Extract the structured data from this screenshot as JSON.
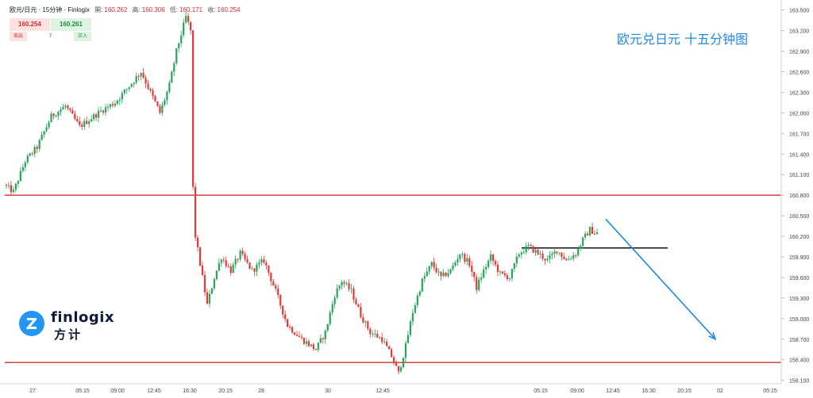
{
  "header": {
    "symbol": "欧元/日元 · 15分钟 · Finlogix",
    "open_label": "開:",
    "open": "160.262",
    "high_label": "高:",
    "high": "160.306",
    "low_label": "低:",
    "low": "160.171",
    "close_label": "收:",
    "close": "160.254"
  },
  "trade": {
    "sell_price": "160.254",
    "buy_price": "160.261",
    "sell_label": "卖出",
    "buy_label": "买入",
    "quantity": "7"
  },
  "logo": {
    "word": "finlogix",
    "cn": "方计"
  },
  "colors": {
    "up": "#26a65b",
    "down": "#e53935",
    "hline": "#d32f2f",
    "arrow": "#1e88e5"
  },
  "chart_data": {
    "type": "candlestick",
    "title": "欧元兑日元 十五分钟图",
    "y_axis": {
      "position": "right",
      "min": 158.05,
      "max": 163.6,
      "ticks": [
        "163.500",
        "163.200",
        "162.900",
        "162.600",
        "162.300",
        "162.000",
        "161.700",
        "161.400",
        "161.100",
        "160.800",
        "160.500",
        "160.200",
        "159.900",
        "159.600",
        "159.300",
        "159.000",
        "158.700",
        "158.400",
        "158.100"
      ]
    },
    "x_axis": {
      "labels": [
        "27",
        "05:15",
        "09:00",
        "12:45",
        "16:30",
        "20:15",
        "28",
        "30",
        "12:45",
        "05:15",
        "09:00",
        "12:45",
        "16:30",
        "20:15",
        "02",
        "05:15"
      ]
    },
    "horizontal_lines": [
      {
        "color": "red",
        "value": 160.8
      },
      {
        "color": "red",
        "value": 158.36
      },
      {
        "color": "black",
        "value": 160.03,
        "x_from_label": "05:15",
        "x_to_label": "16:30"
      }
    ],
    "arrow": {
      "color": "blue",
      "direction": "down",
      "from": 160.45,
      "to": 158.7
    },
    "price_path": [
      [
        0,
        160.95
      ],
      [
        4,
        160.85
      ],
      [
        9,
        161.3
      ],
      [
        14,
        161.5
      ],
      [
        20,
        161.95
      ],
      [
        26,
        162.1
      ],
      [
        32,
        161.8
      ],
      [
        38,
        161.95
      ],
      [
        42,
        162.05
      ],
      [
        47,
        162.15
      ],
      [
        52,
        162.35
      ],
      [
        58,
        162.6
      ],
      [
        62,
        162.3
      ],
      [
        66,
        162.0
      ],
      [
        70,
        162.4
      ],
      [
        73,
        162.9
      ],
      [
        77,
        163.4
      ],
      [
        79,
        163.2
      ],
      [
        80,
        160.9
      ],
      [
        81,
        160.2
      ],
      [
        83,
        159.8
      ],
      [
        86,
        159.2
      ],
      [
        89,
        159.6
      ],
      [
        92,
        159.9
      ],
      [
        96,
        159.7
      ],
      [
        100,
        159.95
      ],
      [
        105,
        159.7
      ],
      [
        110,
        159.85
      ],
      [
        115,
        159.4
      ],
      [
        120,
        158.9
      ],
      [
        126,
        158.7
      ],
      [
        132,
        158.55
      ],
      [
        136,
        158.8
      ],
      [
        140,
        159.35
      ],
      [
        143,
        159.55
      ],
      [
        147,
        159.4
      ],
      [
        151,
        159.05
      ],
      [
        155,
        158.8
      ],
      [
        160,
        158.7
      ],
      [
        164,
        158.45
      ],
      [
        167,
        158.2
      ],
      [
        170,
        158.6
      ],
      [
        173,
        159.1
      ],
      [
        177,
        159.55
      ],
      [
        181,
        159.8
      ],
      [
        185,
        159.6
      ],
      [
        189,
        159.7
      ],
      [
        193,
        159.95
      ],
      [
        197,
        159.8
      ],
      [
        200,
        159.45
      ],
      [
        203,
        159.7
      ],
      [
        206,
        159.9
      ],
      [
        210,
        159.65
      ],
      [
        214,
        159.6
      ],
      [
        218,
        159.95
      ],
      [
        222,
        160.05
      ],
      [
        226,
        159.95
      ],
      [
        230,
        159.85
      ],
      [
        234,
        160.0
      ],
      [
        238,
        159.85
      ],
      [
        242,
        159.95
      ],
      [
        245,
        160.15
      ],
      [
        248,
        160.3
      ],
      [
        250,
        160.25
      ]
    ]
  }
}
